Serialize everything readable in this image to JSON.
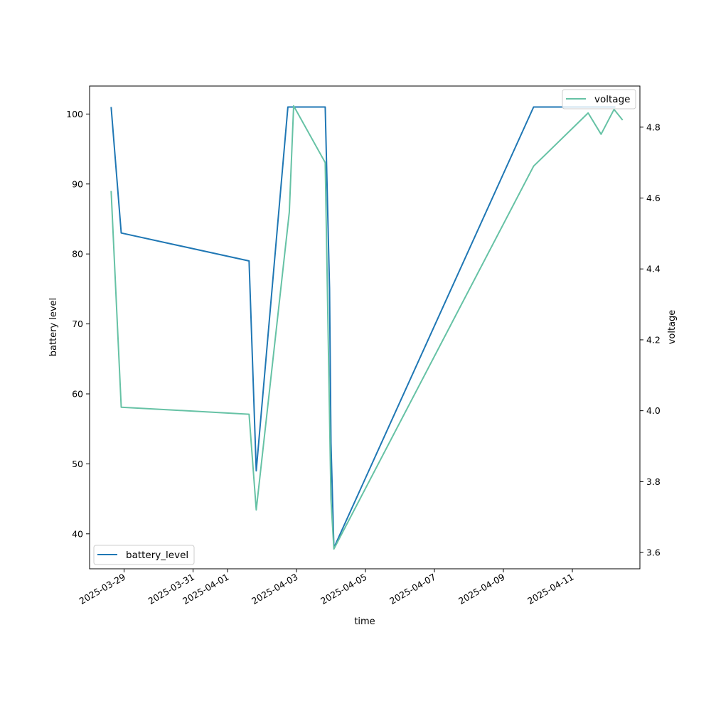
{
  "chart_data": {
    "type": "line",
    "title": "",
    "xlabel": "time",
    "ylabel_left": "battery level",
    "ylabel_right": "voltage",
    "x_tick_labels": [
      "2025-03-29",
      "2025-03-31",
      "2025-04-01",
      "2025-04-03",
      "2025-04-05",
      "2025-04-07",
      "2025-04-09",
      "2025-04-11"
    ],
    "x_tick_dates": [
      "2025-03-29",
      "2025-03-31",
      "2025-04-01",
      "2025-04-03",
      "2025-04-05",
      "2025-04-07",
      "2025-04-09",
      "2025-04-11"
    ],
    "y_left_ticks": [
      "40",
      "50",
      "60",
      "70",
      "80",
      "90",
      "100"
    ],
    "y_right_ticks": [
      "3.6",
      "3.8",
      "4.0",
      "4.2",
      "4.4",
      "4.6",
      "4.8"
    ],
    "xlim": [
      "2025-03-28T00:00",
      "2025-04-12T23:00"
    ],
    "ylim_left": [
      35,
      104
    ],
    "ylim_right": [
      3.554,
      4.916
    ],
    "grid": false,
    "series": [
      {
        "name": "battery_level",
        "axis": "left",
        "color": "#1f77b4",
        "legend_position": "lower-left",
        "points": [
          [
            "2025-03-28T15:00",
            101
          ],
          [
            "2025-03-28T22:00",
            83
          ],
          [
            "2025-04-01T15:00",
            79
          ],
          [
            "2025-04-01T20:00",
            49
          ],
          [
            "2025-04-02T18:00",
            101
          ],
          [
            "2025-04-03T20:00",
            101
          ],
          [
            "2025-04-03T23:00",
            75
          ],
          [
            "2025-04-04T00:00",
            53
          ],
          [
            "2025-04-04T02:00",
            38
          ],
          [
            "2025-04-09T21:00",
            101
          ],
          [
            "2025-04-11T16:00",
            101
          ],
          [
            "2025-04-12T06:00",
            101
          ]
        ]
      },
      {
        "name": "voltage",
        "axis": "right",
        "color": "#66c2a5",
        "legend_position": "upper-right",
        "points": [
          [
            "2025-03-28T15:00",
            4.62
          ],
          [
            "2025-03-28T22:00",
            4.01
          ],
          [
            "2025-04-01T15:00",
            3.99
          ],
          [
            "2025-04-01T20:00",
            3.72
          ],
          [
            "2025-04-02T19:00",
            4.56
          ],
          [
            "2025-04-02T22:00",
            4.86
          ],
          [
            "2025-04-03T20:00",
            4.7
          ],
          [
            "2025-04-04T00:00",
            3.75
          ],
          [
            "2025-04-04T02:00",
            3.61
          ],
          [
            "2025-04-09T21:00",
            4.69
          ],
          [
            "2025-04-11T11:00",
            4.84
          ],
          [
            "2025-04-11T20:00",
            4.78
          ],
          [
            "2025-04-12T05:00",
            4.85
          ],
          [
            "2025-04-12T11:00",
            4.82
          ]
        ]
      }
    ]
  }
}
